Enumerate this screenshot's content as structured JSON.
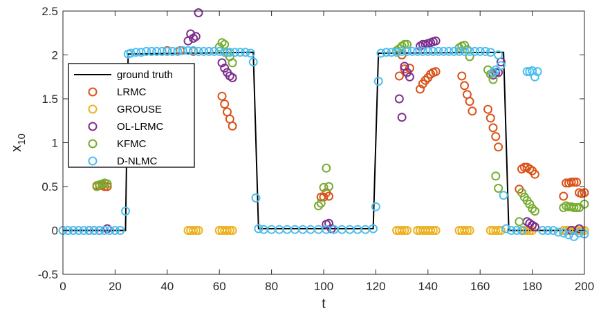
{
  "chart_data": {
    "type": "scatter",
    "xlabel": "t",
    "ylabel": "x",
    "ylabel_sub": "10",
    "xlim": [
      0,
      200
    ],
    "ylim": [
      -0.5,
      2.5
    ],
    "xticks": [
      "0",
      "20",
      "40",
      "60",
      "80",
      "100",
      "120",
      "140",
      "160",
      "180",
      "200"
    ],
    "yticks": [
      "-0.5",
      "0",
      "0.5",
      "1",
      "1.5",
      "2",
      "2.5"
    ],
    "grid": false,
    "legend_position": "upper-left",
    "line": {
      "name": "ground truth",
      "color": "#000000",
      "points": [
        [
          0,
          0
        ],
        [
          24,
          0
        ],
        [
          25,
          2.01
        ],
        [
          73,
          2.03
        ],
        [
          75,
          0.02
        ],
        [
          119,
          0.02
        ],
        [
          121,
          2.02
        ],
        [
          169,
          2.03
        ],
        [
          171,
          0.0
        ],
        [
          200,
          0.0
        ]
      ]
    },
    "series": [
      {
        "name": "LRMC",
        "color": "#D95319",
        "points": [
          [
            13,
            0.51
          ],
          [
            14,
            0.51
          ],
          [
            15,
            0.52
          ],
          [
            16,
            0.5
          ],
          [
            17,
            0.5
          ],
          [
            40,
            2.05
          ],
          [
            45,
            2.05
          ],
          [
            50,
            2.04
          ],
          [
            61,
            1.53
          ],
          [
            62,
            1.44
          ],
          [
            63,
            1.35
          ],
          [
            64,
            1.27
          ],
          [
            65,
            1.19
          ],
          [
            99,
            0.38
          ],
          [
            100,
            0.38
          ],
          [
            101,
            0.43
          ],
          [
            102,
            0.39
          ],
          [
            129,
            1.76
          ],
          [
            130,
            2.0
          ],
          [
            131,
            1.84
          ],
          [
            132,
            1.8
          ],
          [
            133,
            1.85
          ],
          [
            137,
            1.61
          ],
          [
            138,
            1.67
          ],
          [
            139,
            1.71
          ],
          [
            140,
            1.74
          ],
          [
            141,
            1.78
          ],
          [
            142,
            1.8
          ],
          [
            143,
            1.81
          ],
          [
            153,
            1.76
          ],
          [
            154,
            1.65
          ],
          [
            155,
            1.55
          ],
          [
            156,
            1.47
          ],
          [
            157,
            1.36
          ],
          [
            163,
            1.38
          ],
          [
            164,
            1.28
          ],
          [
            165,
            1.17
          ],
          [
            166,
            1.07
          ],
          [
            167,
            0.95
          ],
          [
            175,
            0.47
          ],
          [
            176,
            0.7
          ],
          [
            177,
            0.72
          ],
          [
            178,
            0.72
          ],
          [
            179,
            0.7
          ],
          [
            180,
            0.68
          ],
          [
            181,
            0.64
          ],
          [
            192,
            0.39
          ],
          [
            193,
            0.54
          ],
          [
            194,
            0.54
          ],
          [
            195,
            0.55
          ],
          [
            196,
            0.55
          ],
          [
            197,
            0.55
          ],
          [
            198,
            0.43
          ],
          [
            199,
            0.42
          ],
          [
            200,
            0.43
          ]
        ]
      },
      {
        "name": "GROUSE",
        "color": "#EDB120",
        "points": [
          [
            48,
            0
          ],
          [
            49,
            0
          ],
          [
            50,
            0
          ],
          [
            51,
            0
          ],
          [
            52,
            0
          ],
          [
            60,
            0
          ],
          [
            61,
            0
          ],
          [
            62,
            0
          ],
          [
            63,
            0
          ],
          [
            64,
            0
          ],
          [
            65,
            0
          ],
          [
            128,
            0
          ],
          [
            129,
            0
          ],
          [
            130,
            0
          ],
          [
            131,
            0
          ],
          [
            132,
            0
          ],
          [
            136,
            0
          ],
          [
            137,
            0
          ],
          [
            138,
            0
          ],
          [
            139,
            0
          ],
          [
            140,
            0
          ],
          [
            141,
            0
          ],
          [
            142,
            0
          ],
          [
            143,
            0
          ],
          [
            152,
            0
          ],
          [
            153,
            0
          ],
          [
            154,
            0
          ],
          [
            155,
            0
          ],
          [
            156,
            0
          ],
          [
            164,
            0
          ],
          [
            165,
            0
          ],
          [
            166,
            0
          ],
          [
            167,
            0
          ],
          [
            168,
            0
          ],
          [
            176,
            0
          ],
          [
            177,
            0
          ],
          [
            178,
            0
          ],
          [
            179,
            0
          ],
          [
            180,
            0
          ],
          [
            192,
            0
          ],
          [
            193,
            0
          ],
          [
            194,
            0
          ],
          [
            195,
            0
          ],
          [
            196,
            0
          ],
          [
            197,
            0
          ],
          [
            198,
            0
          ],
          [
            199,
            0
          ],
          [
            200,
            0
          ]
        ]
      },
      {
        "name": "OL-LRMC",
        "color": "#7E2F8E",
        "points": [
          [
            10,
            0.0
          ],
          [
            12,
            0.0
          ],
          [
            14,
            0.0
          ],
          [
            17,
            0.02
          ],
          [
            48,
            2.16
          ],
          [
            49,
            2.24
          ],
          [
            50,
            2.19
          ],
          [
            51,
            2.21
          ],
          [
            52,
            2.48
          ],
          [
            61,
            1.91
          ],
          [
            62,
            1.85
          ],
          [
            63,
            1.8
          ],
          [
            64,
            1.76
          ],
          [
            65,
            1.74
          ],
          [
            101,
            0.07
          ],
          [
            102,
            0.08
          ],
          [
            103,
            0.02
          ],
          [
            129,
            1.5
          ],
          [
            130,
            1.29
          ],
          [
            131,
            1.87
          ],
          [
            132,
            1.8
          ],
          [
            133,
            1.75
          ],
          [
            137,
            2.1
          ],
          [
            138,
            2.12
          ],
          [
            139,
            2.12
          ],
          [
            140,
            2.13
          ],
          [
            141,
            2.14
          ],
          [
            142,
            2.15
          ],
          [
            143,
            2.16
          ],
          [
            165,
            1.77
          ],
          [
            166,
            1.8
          ],
          [
            167,
            1.8
          ],
          [
            168,
            1.92
          ],
          [
            178,
            0.1
          ],
          [
            179,
            0.08
          ],
          [
            180,
            0.06
          ],
          [
            181,
            0.04
          ],
          [
            195,
            0.0
          ],
          [
            198,
            0.02
          ]
        ]
      },
      {
        "name": "KFMC",
        "color": "#77AC30",
        "points": [
          [
            13,
            0.5
          ],
          [
            14,
            0.52
          ],
          [
            15,
            0.53
          ],
          [
            16,
            0.54
          ],
          [
            17,
            0.53
          ],
          [
            60,
            2.09
          ],
          [
            61,
            2.14
          ],
          [
            62,
            2.12
          ],
          [
            63,
            2.03
          ],
          [
            64,
            1.98
          ],
          [
            65,
            1.91
          ],
          [
            98,
            0.28
          ],
          [
            99,
            0.31
          ],
          [
            100,
            0.49
          ],
          [
            101,
            0.71
          ],
          [
            102,
            0.5
          ],
          [
            128,
            2.05
          ],
          [
            129,
            2.07
          ],
          [
            130,
            2.1
          ],
          [
            131,
            2.12
          ],
          [
            132,
            2.12
          ],
          [
            152,
            2.08
          ],
          [
            153,
            2.1
          ],
          [
            154,
            2.11
          ],
          [
            155,
            2.06
          ],
          [
            156,
            1.98
          ],
          [
            163,
            1.83
          ],
          [
            164,
            1.78
          ],
          [
            165,
            1.72
          ],
          [
            166,
            0.62
          ],
          [
            167,
            0.48
          ],
          [
            175,
            0.1
          ],
          [
            176,
            0.43
          ],
          [
            177,
            0.38
          ],
          [
            178,
            0.34
          ],
          [
            179,
            0.3
          ],
          [
            180,
            0.25
          ],
          [
            181,
            0.22
          ],
          [
            192,
            0.26
          ],
          [
            193,
            0.28
          ],
          [
            194,
            0.27
          ],
          [
            195,
            0.27
          ],
          [
            196,
            0.26
          ],
          [
            197,
            0.26
          ],
          [
            198,
            0.26
          ],
          [
            200,
            0.3
          ]
        ]
      },
      {
        "name": "D-NLMC",
        "color": "#4DBEEE",
        "points": [
          [
            0,
            0.0
          ],
          [
            2,
            0.0
          ],
          [
            4,
            0.0
          ],
          [
            6,
            0.0
          ],
          [
            8,
            0.0
          ],
          [
            10,
            0.0
          ],
          [
            12,
            0.0
          ],
          [
            14,
            0.0
          ],
          [
            16,
            0.0
          ],
          [
            18,
            0.0
          ],
          [
            20,
            0.0
          ],
          [
            22,
            0.0
          ],
          [
            24,
            0.22
          ],
          [
            25,
            2.01
          ],
          [
            26,
            2.02
          ],
          [
            28,
            2.03
          ],
          [
            30,
            2.03
          ],
          [
            32,
            2.04
          ],
          [
            34,
            2.04
          ],
          [
            36,
            2.04
          ],
          [
            38,
            2.04
          ],
          [
            40,
            2.04
          ],
          [
            42,
            2.04
          ],
          [
            44,
            2.04
          ],
          [
            46,
            2.05
          ],
          [
            48,
            2.05
          ],
          [
            50,
            2.05
          ],
          [
            52,
            2.04
          ],
          [
            54,
            2.04
          ],
          [
            56,
            2.04
          ],
          [
            58,
            2.04
          ],
          [
            60,
            2.04
          ],
          [
            62,
            2.03
          ],
          [
            64,
            2.03
          ],
          [
            66,
            2.03
          ],
          [
            68,
            2.03
          ],
          [
            70,
            2.03
          ],
          [
            72,
            2.02
          ],
          [
            73,
            1.92
          ],
          [
            74,
            0.37
          ],
          [
            75,
            0.02
          ],
          [
            77,
            0.01
          ],
          [
            80,
            0.01
          ],
          [
            83,
            0.01
          ],
          [
            86,
            0.01
          ],
          [
            89,
            0.01
          ],
          [
            92,
            0.01
          ],
          [
            95,
            0.01
          ],
          [
            98,
            0.01
          ],
          [
            101,
            0.01
          ],
          [
            104,
            0.01
          ],
          [
            107,
            0.01
          ],
          [
            110,
            0.01
          ],
          [
            113,
            0.01
          ],
          [
            116,
            0.01
          ],
          [
            119,
            0.02
          ],
          [
            120,
            0.27
          ],
          [
            121,
            1.7
          ],
          [
            122,
            2.02
          ],
          [
            124,
            2.03
          ],
          [
            126,
            2.03
          ],
          [
            128,
            2.03
          ],
          [
            130,
            2.04
          ],
          [
            132,
            2.04
          ],
          [
            134,
            2.04
          ],
          [
            136,
            2.04
          ],
          [
            138,
            2.04
          ],
          [
            140,
            2.04
          ],
          [
            142,
            2.04
          ],
          [
            144,
            2.04
          ],
          [
            146,
            2.04
          ],
          [
            148,
            2.04
          ],
          [
            150,
            2.04
          ],
          [
            152,
            2.04
          ],
          [
            154,
            2.04
          ],
          [
            156,
            2.04
          ],
          [
            158,
            2.04
          ],
          [
            160,
            2.04
          ],
          [
            162,
            2.04
          ],
          [
            164,
            2.03
          ],
          [
            165,
            1.8
          ],
          [
            166,
            1.83
          ],
          [
            167,
            2.0
          ],
          [
            168,
            1.88
          ],
          [
            169,
            0.4
          ],
          [
            170,
            0.02
          ],
          [
            172,
            0.0
          ],
          [
            174,
            0.0
          ],
          [
            176,
            0.0
          ],
          [
            178,
            1.81
          ],
          [
            179,
            1.81
          ],
          [
            180,
            1.82
          ],
          [
            181,
            1.75
          ],
          [
            182,
            1.81
          ],
          [
            184,
            0.0
          ],
          [
            186,
            0.0
          ],
          [
            188,
            0.0
          ],
          [
            190,
            -0.02
          ],
          [
            192,
            -0.03
          ],
          [
            194,
            -0.05
          ],
          [
            196,
            -0.07
          ],
          [
            198,
            -0.03
          ],
          [
            200,
            -0.04
          ]
        ]
      }
    ]
  }
}
